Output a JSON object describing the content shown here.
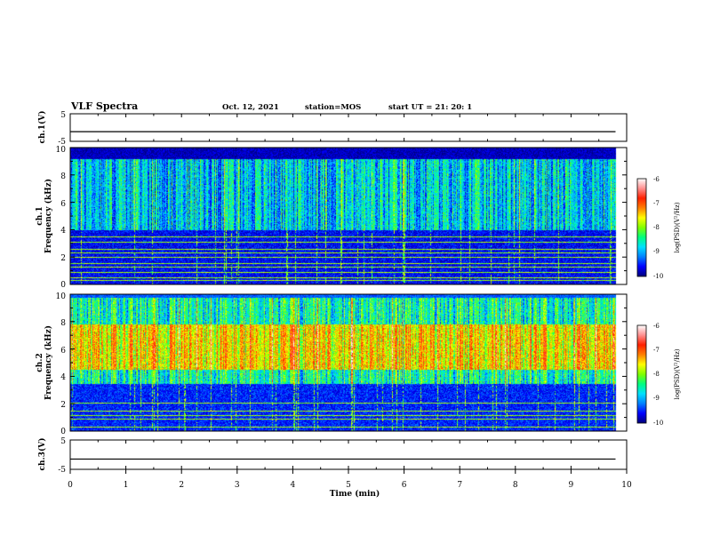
{
  "header": {
    "title": "VLF Spectra",
    "date": "Oct. 12, 2021",
    "station": "station=MOS",
    "start_ut": "start  UT =  21: 20: 1"
  },
  "colorbar": {
    "label": "log(PSD)(V²/Hz)",
    "ticks": [
      "-6",
      "-7",
      "-8",
      "-9",
      "-10"
    ],
    "colors": [
      "#00007a",
      "#0000ff",
      "#0080ff",
      "#00e0ff",
      "#00ff80",
      "#80ff00",
      "#ffff00",
      "#ff8000",
      "#ff2000",
      "#ff9090",
      "#ffffff"
    ]
  },
  "chart_data": [
    {
      "type": "line",
      "name": "ch.1 waveform",
      "ylabel": "ch.1(V)",
      "ylim": [
        -5,
        5
      ],
      "y_ticks": [
        "5",
        "-5"
      ],
      "value_level": -1.5
    },
    {
      "type": "heatmap",
      "ylabel_1": "ch.1",
      "ylabel_2": "Frequency (kHz)",
      "ylim": [
        0,
        10
      ],
      "y_ticks": [
        "0",
        "2",
        "4",
        "6",
        "8",
        "10"
      ],
      "xlim": [
        0,
        10
      ],
      "band_kHz": [
        4,
        9.2
      ],
      "band_log_psd": -8.6,
      "background_log_psd": -9.6,
      "top_log_psd": -10,
      "spike_max_log_psd": -7,
      "narrowband_lines_kHz": [
        0.3,
        0.55,
        0.9,
        1.3,
        1.55,
        2.0,
        2.35,
        2.6,
        3.1,
        3.5
      ]
    },
    {
      "type": "heatmap",
      "ylabel_1": "ch.2",
      "ylabel_2": "Frequency (kHz)",
      "ylim": [
        0,
        10
      ],
      "y_ticks": [
        "0",
        "2",
        "4",
        "6",
        "8",
        "10"
      ],
      "xlim": [
        0,
        10
      ],
      "band_kHz": [
        3.5,
        9.8
      ],
      "band_peak_kHz": [
        4.5,
        7.8
      ],
      "band_log_psd": -7.3,
      "band_edge_log_psd": -8.3,
      "background_log_psd": -9.5,
      "narrowband_lines_kHz": [
        0.3,
        0.9,
        1.2,
        1.5,
        2.1
      ]
    },
    {
      "type": "line",
      "name": "ch.3 waveform",
      "ylabel": "ch.3(V)",
      "ylim": [
        -5,
        5
      ],
      "y_ticks": [
        "5",
        "-5"
      ],
      "value_level": -1.5
    }
  ],
  "x_axis": {
    "label": "Time (min)",
    "ticks": [
      "0",
      "1",
      "2",
      "3",
      "4",
      "5",
      "6",
      "7",
      "8",
      "9",
      "10"
    ],
    "range": [
      0,
      10
    ],
    "data_end": 9.8
  }
}
